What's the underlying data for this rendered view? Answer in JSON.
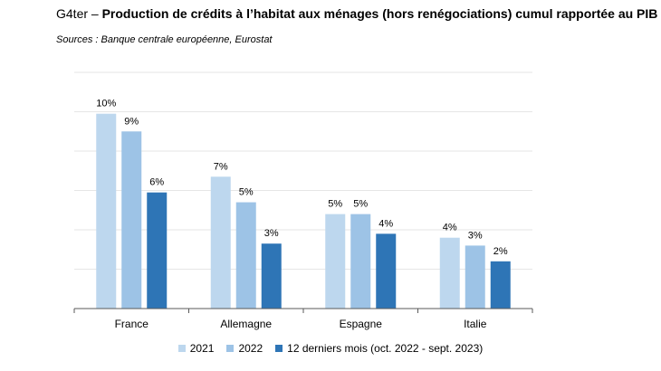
{
  "header": {
    "code": "G4ter",
    "dash": " – ",
    "title": "Production de crédits à l’habitat aux ménages (hors renégociations) cumul rapportée au PIB",
    "sources": "Sources : Banque centrale européenne, Eurostat"
  },
  "chart_data": {
    "type": "bar",
    "categories": [
      "France",
      "Allemagne",
      "Espagne",
      "Italie"
    ],
    "series": [
      {
        "name": "2021",
        "values": [
          9.9,
          6.7,
          4.8,
          3.6
        ],
        "labels": [
          "10%",
          "7%",
          "5%",
          "4%"
        ],
        "color": "#bdd7ee"
      },
      {
        "name": "2022",
        "values": [
          9.0,
          5.4,
          4.8,
          3.2
        ],
        "labels": [
          "9%",
          "5%",
          "5%",
          "3%"
        ],
        "color": "#9dc3e6"
      },
      {
        "name": "12 derniers mois (oct. 2022 - sept. 2023)",
        "values": [
          5.9,
          3.3,
          3.8,
          2.4
        ],
        "labels": [
          "6%",
          "3%",
          "4%",
          "2%"
        ],
        "color": "#2e75b6"
      }
    ],
    "ylim": [
      0,
      12
    ],
    "grid": true,
    "legend_position": "bottom"
  }
}
